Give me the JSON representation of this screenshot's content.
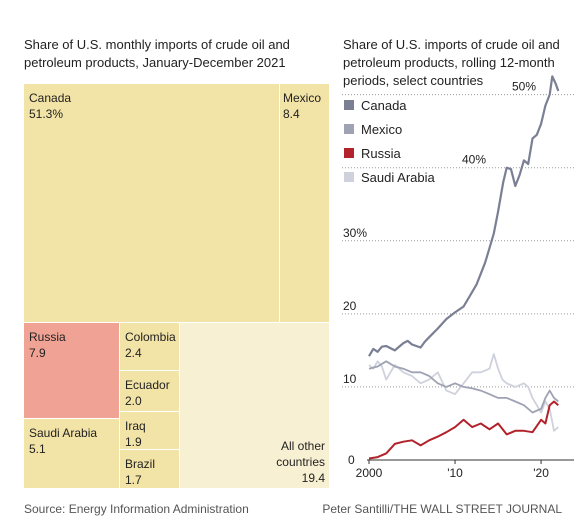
{
  "chart_data": [
    {
      "type": "treemap",
      "title": "Share of U.S. monthly imports of crude oil and petroleum products, January-December 2021",
      "items": [
        {
          "name": "Canada",
          "label": "51.3%",
          "value": 51.3,
          "color": "#f2e3a6"
        },
        {
          "name": "Mexico",
          "label": "8.4",
          "value": 8.4,
          "color": "#f2e3a6"
        },
        {
          "name": "Russia",
          "label": "7.9",
          "value": 7.9,
          "color": "#f0a394"
        },
        {
          "name": "Saudi Arabia",
          "label": "5.1",
          "value": 5.1,
          "color": "#f2e3a6"
        },
        {
          "name": "Colombia",
          "label": "2.4",
          "value": 2.4,
          "color": "#f2e3a6"
        },
        {
          "name": "Ecuador",
          "label": "2.0",
          "value": 2.0,
          "color": "#f2e3a6"
        },
        {
          "name": "Iraq",
          "label": "1.9",
          "value": 1.9,
          "color": "#f2e3a6"
        },
        {
          "name": "Brazil",
          "label": "1.7",
          "value": 1.7,
          "color": "#f2e3a6"
        },
        {
          "name": "All other countries",
          "label": "19.4",
          "value": 19.4,
          "color": "#f8f0d3"
        }
      ]
    },
    {
      "type": "line",
      "title": "Share of U.S. imports of crude oil and petroleum products, rolling 12-month periods, select countries",
      "ylim": [
        0,
        52
      ],
      "xlim": [
        2000,
        2022.2
      ],
      "y_ticks": [
        {
          "value": 0,
          "label": "0"
        },
        {
          "value": 10,
          "label": "10"
        },
        {
          "value": 20,
          "label": "20"
        },
        {
          "value": 30,
          "label": "30%"
        },
        {
          "value": 40,
          "label": "40%"
        },
        {
          "value": 50,
          "label": "50%"
        }
      ],
      "x_ticks": [
        {
          "value": 2000,
          "label": "2000"
        },
        {
          "value": 2010,
          "label": "'10"
        },
        {
          "value": 2020,
          "label": "'20"
        }
      ],
      "grid": "horizontal dotted",
      "legend": "top-left",
      "series": [
        {
          "name": "Canada",
          "color": "#7a7f94",
          "width": 2.2,
          "x": [
            2000,
            2000.5,
            2001,
            2001.5,
            2002,
            2003,
            2004,
            2004.5,
            2005,
            2006,
            2006.5,
            2007,
            2008,
            2009,
            2010,
            2011,
            2012,
            2012.5,
            2013,
            2013.5,
            2014,
            2014.5,
            2015,
            2015.6,
            2016,
            2016.5,
            2017,
            2017.5,
            2018,
            2018.5,
            2019,
            2019.5,
            2020,
            2020.5,
            2021,
            2021.3,
            2021.7,
            2022
          ],
          "y": [
            14.2,
            15.2,
            14.8,
            15.5,
            15.6,
            15.0,
            16.0,
            16.3,
            15.8,
            15.4,
            16.2,
            16.8,
            18.0,
            19.3,
            20.2,
            21.0,
            23.0,
            24.0,
            25.5,
            27.0,
            29.0,
            31.0,
            34.0,
            38.0,
            40.0,
            39.8,
            37.5,
            39.0,
            41.0,
            40.5,
            44.0,
            44.5,
            46.0,
            48.5,
            50.0,
            52.5,
            51.5,
            50.5
          ]
        },
        {
          "name": "Mexico",
          "color": "#9ea2b3",
          "width": 1.8,
          "x": [
            2000,
            2001,
            2002,
            2003,
            2004,
            2005,
            2006,
            2007,
            2008,
            2009,
            2010,
            2011,
            2012,
            2013,
            2014,
            2015,
            2016,
            2017,
            2018,
            2019,
            2020,
            2020.5,
            2021,
            2021.5,
            2022
          ],
          "y": [
            12.5,
            12.8,
            13.5,
            12.8,
            12.5,
            12.0,
            12.0,
            11.5,
            10.5,
            10.0,
            10.5,
            10.0,
            9.8,
            9.5,
            9.0,
            8.5,
            8.5,
            8.0,
            7.5,
            6.5,
            7.0,
            8.5,
            9.5,
            8.5,
            8.0
          ]
        },
        {
          "name": "Russia",
          "color": "#b2222b",
          "width": 2.0,
          "x": [
            2000,
            2001,
            2002,
            2003,
            2004,
            2005,
            2006,
            2007,
            2008,
            2009,
            2010,
            2011,
            2012,
            2013,
            2014,
            2015,
            2016,
            2017,
            2018,
            2019,
            2020,
            2020.5,
            2021,
            2021.5,
            2022
          ],
          "y": [
            0.2,
            0.4,
            0.9,
            2.2,
            2.5,
            2.7,
            2.0,
            2.7,
            3.2,
            3.8,
            4.5,
            5.5,
            4.5,
            5.0,
            4.2,
            5.0,
            3.5,
            4.0,
            4.0,
            3.8,
            5.5,
            5.0,
            7.5,
            8.0,
            7.5
          ]
        },
        {
          "name": "Saudi Arabia",
          "color": "#cfd1dc",
          "width": 1.8,
          "x": [
            2000,
            2000.5,
            2001,
            2001.5,
            2002,
            2003,
            2004,
            2005,
            2006,
            2007,
            2008,
            2009,
            2010,
            2011,
            2012,
            2013,
            2014,
            2014.5,
            2015,
            2015.5,
            2016,
            2017,
            2018,
            2018.5,
            2019,
            2019.5,
            2020,
            2020.5,
            2021,
            2021.5,
            2022
          ],
          "y": [
            13.0,
            12.5,
            13.5,
            12.8,
            11.0,
            13.0,
            12.0,
            11.5,
            10.5,
            11.0,
            12.0,
            9.5,
            9.0,
            10.5,
            12.0,
            12.0,
            12.5,
            14.5,
            12.5,
            11.0,
            10.5,
            10.0,
            10.5,
            10.0,
            8.5,
            7.5,
            6.5,
            8.0,
            7.0,
            4.0,
            4.5
          ]
        }
      ]
    }
  ],
  "footer": {
    "source": "Source: Energy Information Administration",
    "credit": "Peter Santilli/THE WALL STREET JOURNAL"
  }
}
